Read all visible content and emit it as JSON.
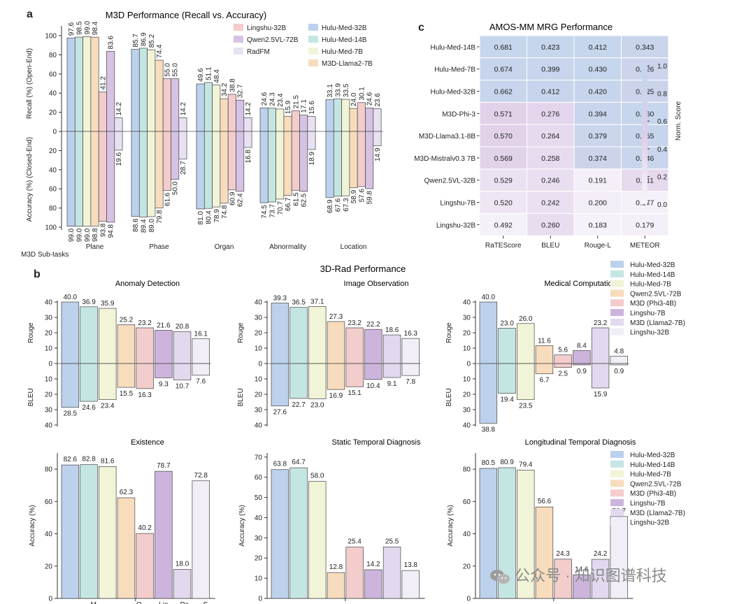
{
  "panel_letters": {
    "a": "a",
    "b": "b",
    "c": "c"
  },
  "watermark": "公众号 · 知识图谱科技",
  "chart_data": [
    {
      "id": "a",
      "type": "bar",
      "title": "M3D Performance (Recall vs. Accuracy)",
      "ylabel_top": "Recall (%) (Open-End)",
      "ylabel_bottom": "Accuracy (%) (Closed-End)",
      "xlabel": "M3D Sub-tasks",
      "yticks": [
        "100",
        "80",
        "60",
        "40",
        "20",
        "0",
        "20",
        "40",
        "60",
        "80",
        "100"
      ],
      "ylim": [
        -100,
        100
      ],
      "categories": [
        "Plane",
        "Phase",
        "Organ",
        "Abnormality",
        "Location"
      ],
      "series": [
        {
          "name": "Hulu-Med-32B",
          "color": "#bcd1ec",
          "recall": [
            97.6,
            85.7,
            49.6,
            24.6,
            33.1
          ],
          "accuracy": [
            99.0,
            88.6,
            81.0,
            74.5,
            68.9
          ]
        },
        {
          "name": "Hulu-Med-14B",
          "color": "#c4e6e3",
          "recall": [
            98.5,
            86.9,
            51.1,
            24.3,
            33.9
          ],
          "accuracy": [
            99.0,
            89.4,
            80.4,
            73.7,
            67.6
          ]
        },
        {
          "name": "Hulu-Med-7B",
          "color": "#f1f4d6",
          "recall": [
            99.0,
            85.2,
            48.4,
            23.4,
            33.5
          ],
          "accuracy": [
            99.0,
            89.0,
            78.9,
            70.7,
            67.3
          ]
        },
        {
          "name": "M3D-Llama2-7B",
          "color": "#f7dcbd",
          "recall": [
            98.4,
            74.4,
            34.2,
            15.9,
            24.0
          ],
          "accuracy": [
            98.8,
            79.8,
            74.8,
            66.7,
            58.9
          ]
        },
        {
          "name": "Lingshu-32B",
          "color": "#f3cccc",
          "recall": [
            41.2,
            55.0,
            38.8,
            21.5,
            30.1
          ],
          "accuracy": [
            93.8,
            61.6,
            60.9,
            61.5,
            57.6
          ]
        },
        {
          "name": "Qwen2.5VL-72B",
          "color": "#d6c3e3",
          "recall": [
            83.6,
            55.0,
            32.7,
            17.1,
            24.6
          ],
          "accuracy": [
            94.8,
            50.0,
            62.4,
            62.5,
            59.8
          ]
        },
        {
          "name": "RadFM",
          "color": "#e7e1f2",
          "recall": [
            14.2,
            14.2,
            14.2,
            15.6,
            23.6
          ],
          "accuracy": [
            19.6,
            28.7,
            16.8,
            18.9,
            14.9
          ]
        }
      ],
      "legend": [
        "Lingshu-32B",
        "Hulu-Med-32B",
        "Qwen2.5VL-72B",
        "Hulu-Med-14B",
        "RadFM",
        "Hulu-Med-7B",
        "M3D-Llama2-7B"
      ]
    },
    {
      "id": "b",
      "type": "bar",
      "title": "3D-Rad Performance",
      "legend": [
        "Hulu-Med-32B",
        "Hulu-Med-14B",
        "Hulu-Med-7B",
        "Qwen2.5VL-72B",
        "M3D (Phi3-4B)",
        "Lingshu-7B",
        "M3D (Llama2-7B)",
        "Lingshu-32B"
      ],
      "colors": [
        "#bcd1ec",
        "#c4e6e3",
        "#f1f4d6",
        "#f7dcbd",
        "#f3cccc",
        "#cdb4dd",
        "#e2d9ef",
        "#f1eef7"
      ],
      "subplots": [
        {
          "title": "Anomaly Detection",
          "kind": "diverging",
          "ylabel_top": "Rouge",
          "ylabel_bottom": "BLEU",
          "ylim": [
            -40,
            40
          ],
          "yticks": [
            "40",
            "30",
            "20",
            "10",
            "0",
            "10",
            "20",
            "30",
            "40"
          ],
          "rouge": [
            40.0,
            36.9,
            35.9,
            25.2,
            23.2,
            21.6,
            20.8,
            16.1
          ],
          "bleu": [
            28.5,
            24.6,
            23.4,
            15.5,
            16.3,
            9.3,
            10.7,
            7.6
          ],
          "rouge_labels": [
            "40.0",
            "36.9",
            "35.9",
            "25.2",
            "23.2",
            "21.6",
            "20.8",
            "16.1"
          ],
          "bleu_labels": [
            "28.5",
            "24.6",
            "23.4",
            "15.5",
            "16.3",
            "9.3",
            "10.7",
            "7.6"
          ]
        },
        {
          "title": "Image Observation",
          "kind": "diverging",
          "ylabel_top": "Rouge",
          "ylabel_bottom": "BLEU",
          "ylim": [
            -40,
            40
          ],
          "yticks": [
            "40",
            "30",
            "20",
            "10",
            "0",
            "10",
            "20",
            "30",
            "40"
          ],
          "rouge": [
            39.3,
            36.5,
            37.1,
            27.3,
            23.2,
            22.2,
            18.6,
            16.3
          ],
          "bleu": [
            27.6,
            22.7,
            23.0,
            16.9,
            15.1,
            10.4,
            9.1,
            7.8
          ],
          "rouge_labels": [
            "39.3",
            "36.5",
            "37.1",
            "27.3",
            "23.2",
            "22.2",
            "18.6",
            "16.3"
          ],
          "bleu_labels": [
            "27.6",
            "22.7",
            "23.0",
            "16.9",
            "15.1",
            "10.4",
            "9.1",
            "7.8"
          ]
        },
        {
          "title": "Medical Computation",
          "kind": "diverging",
          "ylabel_top": "Rouge",
          "ylabel_bottom": "BLEU",
          "ylim": [
            -40,
            40
          ],
          "yticks": [
            "40",
            "30",
            "20",
            "10",
            "0",
            "10",
            "20",
            "30",
            "40"
          ],
          "rouge": [
            40.0,
            23.0,
            26.0,
            11.6,
            5.6,
            8.4,
            23.2,
            4.8
          ],
          "bleu": [
            38.8,
            19.4,
            23.5,
            6.7,
            2.5,
            0.9,
            15.9,
            0.9
          ],
          "rouge_labels": [
            "40.0",
            "23.0",
            "26.0",
            "11.6",
            "5.6",
            "8.4",
            "23.2",
            "4.8"
          ],
          "bleu_labels": [
            "38.8",
            "19.4",
            "23.5",
            "6.7",
            "2.5",
            "0.9",
            "15.9",
            "0.9"
          ]
        },
        {
          "title": "Existence",
          "kind": "single",
          "ylabel": "Accuracy (%)",
          "ylim": [
            0,
            90
          ],
          "yticks": [
            "0",
            "20",
            "40",
            "60",
            "80"
          ],
          "values": [
            82.6,
            82.8,
            81.6,
            62.3,
            40.2,
            78.7,
            18.0,
            72.8
          ],
          "value_labels": [
            "82.6",
            "82.8",
            "81.6",
            "62.3",
            "40.2",
            "78.7",
            "18.0",
            "72.8"
          ],
          "xticks": [
            "M...",
            "...",
            "Q...",
            "Lin...",
            "Ra...",
            "S..."
          ]
        },
        {
          "title": "Static Temporal Diagnosis",
          "kind": "single",
          "ylabel": "Accuracy (%)",
          "ylim": [
            0,
            72
          ],
          "yticks": [
            "0",
            "10",
            "20",
            "30",
            "40",
            "50",
            "60",
            "70"
          ],
          "values": [
            63.8,
            64.7,
            58.0,
            12.8,
            25.4,
            14.2,
            25.5,
            13.8
          ],
          "value_labels": [
            "63.8",
            "64.7",
            "58.0",
            "12.8",
            "25.4",
            "14.2",
            "25.5",
            "13.8"
          ]
        },
        {
          "title": "Longitudinal Temporal Diagnosis",
          "kind": "single",
          "ylabel": "Accuracy (%)",
          "ylim": [
            0,
            90
          ],
          "yticks": [
            "0",
            "20",
            "40",
            "60",
            "80"
          ],
          "values": [
            80.5,
            80.9,
            79.4,
            56.6,
            24.3,
            14.6,
            24.2,
            50.7
          ],
          "value_labels": [
            "80.5",
            "80.9",
            "79.4",
            "56.6",
            "24.3",
            "14.6",
            "24.2",
            "50.7"
          ]
        }
      ]
    },
    {
      "id": "c",
      "type": "heatmap",
      "title": "AMOS-MM MRG Performance",
      "rows": [
        "Hulu-Med-14B",
        "Hulu-Med-7B",
        "Hulu-Med-32B",
        "M3D-Phi-3",
        "M3D-Llama3.1-8B",
        "M3D-Mistralv0.3 7B",
        "Qwen2.5VL-32B",
        "Lingshu-7B",
        "Lingshu-32B"
      ],
      "columns": [
        "RaTEScore",
        "BLEU",
        "Rouge-L",
        "METEOR"
      ],
      "values": [
        [
          0.681,
          0.423,
          0.412,
          0.343
        ],
        [
          0.674,
          0.399,
          0.43,
          0.326
        ],
        [
          0.662,
          0.412,
          0.42,
          0.325
        ],
        [
          0.571,
          0.276,
          0.394,
          0.36
        ],
        [
          0.57,
          0.264,
          0.379,
          0.355
        ],
        [
          0.569,
          0.258,
          0.374,
          0.346
        ],
        [
          0.529,
          0.246,
          0.191,
          0.211
        ],
        [
          0.52,
          0.242,
          0.2,
          0.177
        ],
        [
          0.492,
          0.26,
          0.183,
          0.179
        ]
      ],
      "labels": [
        [
          "0.681",
          "0.423",
          "0.412",
          "0.343"
        ],
        [
          "0.674",
          "0.399",
          "0.430",
          "0.326"
        ],
        [
          "0.662",
          "0.412",
          "0.420",
          "0.325"
        ],
        [
          "0.571",
          "0.276",
          "0.394",
          "0.360"
        ],
        [
          "0.570",
          "0.264",
          "0.379",
          "0.355"
        ],
        [
          "0.569",
          "0.258",
          "0.374",
          "0.346"
        ],
        [
          "0.529",
          "0.246",
          "0.191",
          "0.211"
        ],
        [
          "0.520",
          "0.242",
          "0.200",
          "0.177"
        ],
        [
          "0.492",
          "0.260",
          "0.183",
          "0.179"
        ]
      ],
      "norm": [
        [
          0.95,
          0.95,
          0.95,
          0.85
        ],
        [
          0.92,
          0.9,
          0.96,
          0.8
        ],
        [
          0.9,
          0.93,
          0.93,
          0.8
        ],
        [
          0.45,
          0.4,
          0.88,
          0.95
        ],
        [
          0.45,
          0.35,
          0.82,
          0.93
        ],
        [
          0.44,
          0.33,
          0.8,
          0.9
        ],
        [
          0.25,
          0.28,
          0.06,
          0.35
        ],
        [
          0.2,
          0.27,
          0.1,
          0.05
        ],
        [
          0.05,
          0.32,
          0.04,
          0.06
        ]
      ],
      "colorbar": {
        "label": "Norm. Score",
        "ticks": [
          "1.0",
          "0.8",
          "0.6",
          "0.4",
          "0.2",
          "0.0"
        ]
      }
    }
  ]
}
